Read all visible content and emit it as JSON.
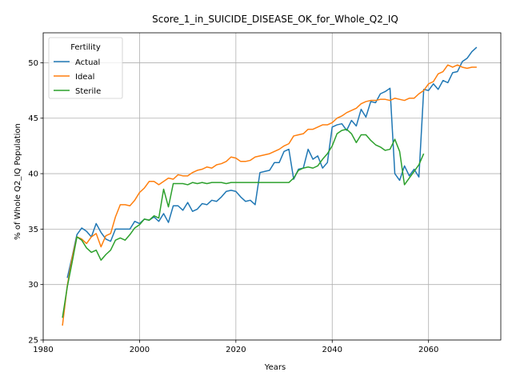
{
  "chart_data": {
    "type": "line",
    "title": "Score_1_in_SUICIDE_DISEASE_OK_for_Whole_Q2_IQ",
    "xlabel": "Years",
    "ylabel": "% of Whole Q2_IQ Population",
    "xlim": [
      1980,
      2075
    ],
    "ylim": [
      25,
      52.7
    ],
    "xticks": [
      1980,
      2000,
      2020,
      2040,
      2060
    ],
    "yticks": [
      25,
      30,
      35,
      40,
      45,
      50
    ],
    "grid": true,
    "legend": {
      "title": "Fertility",
      "placement": "top-left"
    },
    "series": [
      {
        "name": "Actual",
        "color": "#1f77b4",
        "x": [
          1985,
          1986,
          1987,
          1988,
          1989,
          1990,
          1991,
          1992,
          1993,
          1994,
          1995,
          1996,
          1997,
          1998,
          1999,
          2000,
          2001,
          2002,
          2003,
          2004,
          2005,
          2006,
          2007,
          2008,
          2009,
          2010,
          2011,
          2012,
          2013,
          2014,
          2015,
          2016,
          2017,
          2018,
          2019,
          2020,
          2021,
          2022,
          2023,
          2024,
          2025,
          2026,
          2027,
          2028,
          2029,
          2030,
          2031,
          2032,
          2033,
          2034,
          2035,
          2036,
          2037,
          2038,
          2039,
          2040,
          2041,
          2042,
          2043,
          2044,
          2045,
          2046,
          2047,
          2048,
          2049,
          2050,
          2051,
          2052,
          2053,
          2054,
          2055,
          2056,
          2057,
          2058,
          2059,
          2060,
          2061,
          2062,
          2063,
          2064,
          2065,
          2066,
          2067,
          2068,
          2069,
          2070
        ],
        "y": [
          30.6,
          32.5,
          34.5,
          35.1,
          34.8,
          34.3,
          35.5,
          34.7,
          34.1,
          33.9,
          35.0,
          35.0,
          35.0,
          35.0,
          35.7,
          35.5,
          35.9,
          35.8,
          36.1,
          35.7,
          36.4,
          35.6,
          37.1,
          37.1,
          36.7,
          37.4,
          36.6,
          36.8,
          37.3,
          37.2,
          37.6,
          37.5,
          37.9,
          38.4,
          38.5,
          38.4,
          37.9,
          37.5,
          37.6,
          37.2,
          40.1,
          40.2,
          40.3,
          41.0,
          41.0,
          42.0,
          42.2,
          39.5,
          40.4,
          40.5,
          42.2,
          41.3,
          41.6,
          40.5,
          41.0,
          44.2,
          44.4,
          44.5,
          43.9,
          44.8,
          44.3,
          45.8,
          45.1,
          46.5,
          46.4,
          47.2,
          47.4,
          47.7,
          40.0,
          39.4,
          40.7,
          39.8,
          40.4,
          39.7,
          47.6,
          47.5,
          48.1,
          47.6,
          48.4,
          48.2,
          49.1,
          49.2,
          50.1,
          50.4,
          51.0,
          51.4
        ]
      },
      {
        "name": "Ideal",
        "color": "#ff7f0e",
        "x": [
          1984,
          1985,
          1986,
          1987,
          1988,
          1989,
          1990,
          1991,
          1992,
          1993,
          1994,
          1995,
          1996,
          1997,
          1998,
          1999,
          2000,
          2001,
          2002,
          2003,
          2004,
          2005,
          2006,
          2007,
          2008,
          2009,
          2010,
          2011,
          2012,
          2013,
          2014,
          2015,
          2016,
          2017,
          2018,
          2019,
          2020,
          2021,
          2022,
          2023,
          2024,
          2025,
          2026,
          2027,
          2028,
          2029,
          2030,
          2031,
          2032,
          2033,
          2034,
          2035,
          2036,
          2037,
          2038,
          2039,
          2040,
          2041,
          2042,
          2043,
          2044,
          2045,
          2046,
          2047,
          2048,
          2049,
          2050,
          2051,
          2052,
          2053,
          2054,
          2055,
          2056,
          2057,
          2058,
          2059,
          2060,
          2061,
          2062,
          2063,
          2064,
          2065,
          2066,
          2067,
          2068,
          2069,
          2070
        ],
        "y": [
          26.3,
          29.9,
          32.4,
          34.3,
          34.1,
          33.7,
          34.3,
          34.6,
          33.4,
          34.4,
          34.6,
          36.1,
          37.2,
          37.2,
          37.1,
          37.6,
          38.3,
          38.7,
          39.3,
          39.3,
          39.0,
          39.3,
          39.6,
          39.5,
          39.9,
          39.8,
          39.8,
          40.1,
          40.3,
          40.4,
          40.6,
          40.5,
          40.8,
          40.9,
          41.1,
          41.5,
          41.4,
          41.1,
          41.1,
          41.2,
          41.5,
          41.6,
          41.7,
          41.8,
          42.0,
          42.2,
          42.5,
          42.7,
          43.4,
          43.5,
          43.6,
          44.0,
          44.0,
          44.2,
          44.4,
          44.4,
          44.6,
          45.0,
          45.2,
          45.5,
          45.7,
          45.9,
          46.3,
          46.5,
          46.6,
          46.6,
          46.7,
          46.7,
          46.6,
          46.8,
          46.7,
          46.6,
          46.8,
          46.8,
          47.2,
          47.5,
          48.1,
          48.3,
          49.0,
          49.2,
          49.8,
          49.6,
          49.8,
          49.6,
          49.5,
          49.6,
          49.6
        ]
      },
      {
        "name": "Sterile",
        "color": "#2ca02c",
        "x": [
          1984,
          1985,
          1986,
          1987,
          1988,
          1989,
          1990,
          1991,
          1992,
          1993,
          1994,
          1995,
          1996,
          1997,
          1998,
          1999,
          2000,
          2001,
          2002,
          2003,
          2004,
          2005,
          2006,
          2007,
          2008,
          2009,
          2010,
          2011,
          2012,
          2013,
          2014,
          2015,
          2016,
          2017,
          2018,
          2019,
          2020,
          2021,
          2022,
          2023,
          2024,
          2025,
          2026,
          2027,
          2028,
          2029,
          2030,
          2031,
          2032,
          2033,
          2034,
          2035,
          2036,
          2037,
          2038,
          2039,
          2040,
          2041,
          2042,
          2043,
          2044,
          2045,
          2046,
          2047,
          2048,
          2049,
          2050,
          2051,
          2052,
          2053,
          2054,
          2055,
          2056,
          2057,
          2058,
          2059
        ],
        "y": [
          27.0,
          29.8,
          32.0,
          34.3,
          34.0,
          33.3,
          32.9,
          33.1,
          32.2,
          32.7,
          33.1,
          34.0,
          34.2,
          34.0,
          34.5,
          35.1,
          35.4,
          35.9,
          35.8,
          36.2,
          36.0,
          38.6,
          37.0,
          39.1,
          39.1,
          39.1,
          39.0,
          39.2,
          39.1,
          39.2,
          39.1,
          39.2,
          39.2,
          39.2,
          39.1,
          39.2,
          39.2,
          39.2,
          39.2,
          39.2,
          39.2,
          39.2,
          39.2,
          39.2,
          39.2,
          39.2,
          39.2,
          39.2,
          39.6,
          40.3,
          40.5,
          40.6,
          40.5,
          40.7,
          41.3,
          41.8,
          42.5,
          43.6,
          43.9,
          44.0,
          43.6,
          42.8,
          43.5,
          43.5,
          43.0,
          42.6,
          42.4,
          42.1,
          42.2,
          43.1,
          42.0,
          39.0,
          39.6,
          40.2,
          40.8,
          41.8
        ]
      }
    ]
  }
}
